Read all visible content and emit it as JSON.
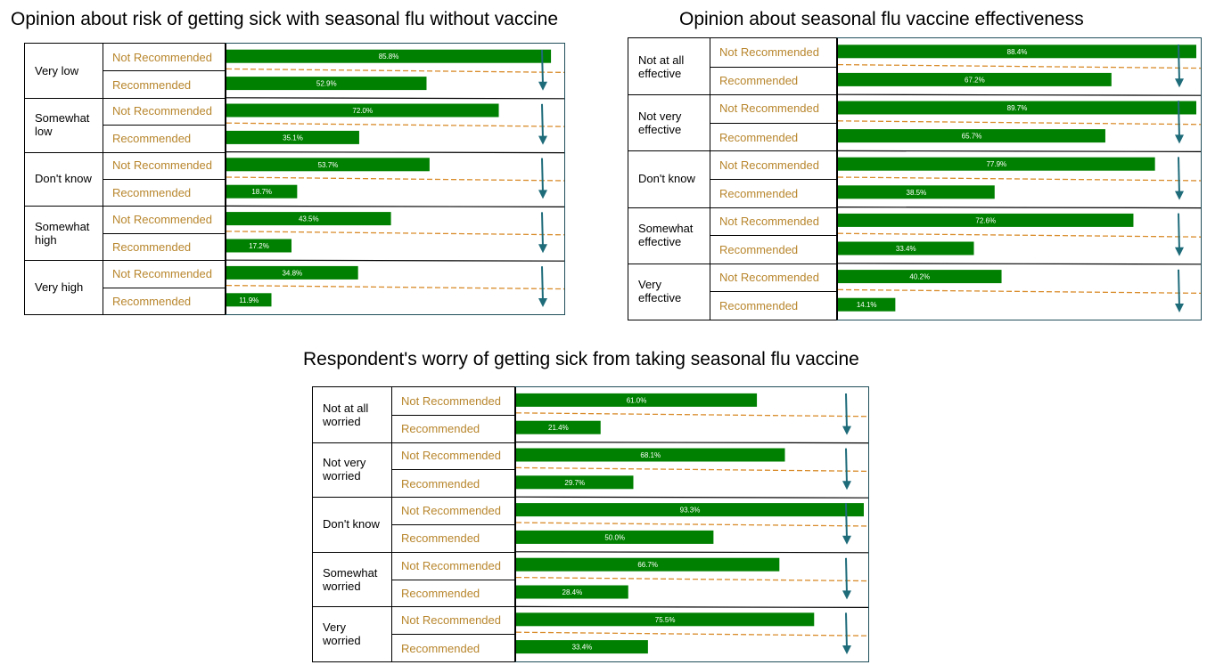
{
  "chart_data": [
    {
      "type": "bar",
      "title": "Opinion about risk of getting sick with seasonal flu without vaccine",
      "categories": [
        [
          "Very low"
        ],
        [
          "Somewhat",
          "low"
        ],
        [
          "Don't know"
        ],
        [
          "Somewhat",
          "high"
        ],
        [
          "Very high"
        ]
      ],
      "series": [
        {
          "name": "Not Recommended",
          "values": [
            85.8,
            72.0,
            53.7,
            43.5,
            34.8
          ]
        },
        {
          "name": "Recommended",
          "values": [
            52.9,
            35.1,
            18.7,
            17.2,
            11.9
          ]
        }
      ],
      "value_labels": {
        "Not Recommended": [
          "85.8%",
          "72.0%",
          "53.7%",
          "43.5%",
          "34.8%"
        ],
        "Recommended": [
          "52.9%",
          "35.1%",
          "18.7%",
          "17.2%",
          "11.9%"
        ]
      },
      "xlim": [
        0,
        100
      ],
      "bar_color": "#008000",
      "divider_color": "#d98c2b",
      "arrow_color": "#1e6b7a"
    },
    {
      "type": "bar",
      "title": "Opinion about seasonal flu vaccine effectiveness",
      "categories": [
        [
          "Not at all",
          "effective"
        ],
        [
          "Not very",
          "effective"
        ],
        [
          "Don't know"
        ],
        [
          "Somewhat",
          "effective"
        ],
        [
          "Very",
          "effective"
        ]
      ],
      "series": [
        {
          "name": "Not Recommended",
          "values": [
            88.4,
            89.7,
            77.9,
            72.6,
            40.2
          ]
        },
        {
          "name": "Recommended",
          "values": [
            67.2,
            65.7,
            38.5,
            33.4,
            14.1
          ]
        }
      ],
      "value_labels": {
        "Not Recommended": [
          "88.4%",
          "89.7%",
          "77.9%",
          "72.6%",
          "40.2%"
        ],
        "Recommended": [
          "67.2%",
          "65.7%",
          "38.5%",
          "33.4%",
          "14.1%"
        ]
      },
      "xlim": [
        0,
        100
      ],
      "bar_color": "#008000",
      "divider_color": "#d98c2b",
      "arrow_color": "#1e6b7a"
    },
    {
      "type": "bar",
      "title": "Respondent's worry of getting sick from taking seasonal flu vaccine",
      "categories": [
        [
          "Not at all",
          "worried"
        ],
        [
          "Not very",
          "worried"
        ],
        [
          "Don't know"
        ],
        [
          "Somewhat",
          "worried"
        ],
        [
          "Very",
          "worried"
        ]
      ],
      "series": [
        {
          "name": "Not Recommended",
          "values": [
            61.0,
            68.1,
            93.3,
            66.7,
            75.5
          ]
        },
        {
          "name": "Recommended",
          "values": [
            21.4,
            29.7,
            50.0,
            28.4,
            33.4
          ]
        }
      ],
      "value_labels": {
        "Not Recommended": [
          "61.0%",
          "68.1%",
          "93.3%",
          "66.7%",
          "75.5%"
        ],
        "Recommended": [
          "21.4%",
          "29.7%",
          "50.0%",
          "28.4%",
          "33.4%"
        ]
      },
      "xlim": [
        0,
        100
      ],
      "bar_color": "#008000",
      "divider_color": "#d98c2b",
      "arrow_color": "#1e6b7a"
    }
  ]
}
